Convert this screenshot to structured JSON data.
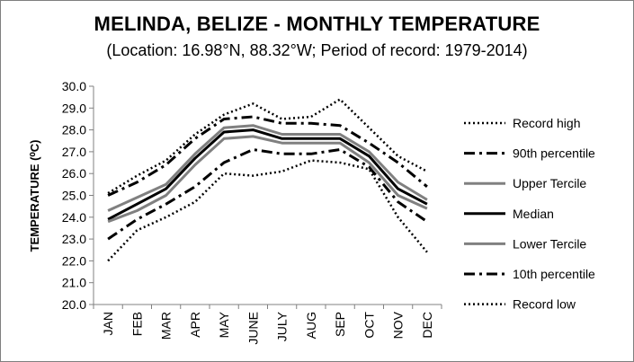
{
  "chart_data": {
    "type": "line",
    "title": "MELINDA, BELIZE - MONTHLY TEMPERATURE",
    "subtitle": "(Location: 16.98°N, 88.32°W; Period of record: 1979-2014)",
    "ylabel": "TEMPERATURE (⁰C)",
    "xlabel": "",
    "ylim": [
      20.0,
      30.0
    ],
    "ytick_labels": [
      "20.0",
      "21.0",
      "22.0",
      "23.0",
      "24.0",
      "25.0",
      "26.0",
      "27.0",
      "28.0",
      "29.0",
      "30.0"
    ],
    "categories": [
      "JAN",
      "FEB",
      "MAR",
      "APR",
      "MAY",
      "JUNE",
      "JULY",
      "AUG",
      "SEP",
      "OCT",
      "NOV",
      "DEC"
    ],
    "grid": false,
    "legend_position": "right",
    "series": [
      {
        "name": "Record high",
        "color": "#000000",
        "style": "dotted",
        "width": 2.5,
        "values": [
          25.1,
          25.9,
          26.6,
          27.8,
          28.7,
          29.2,
          28.5,
          28.6,
          29.4,
          28.1,
          26.8,
          26.1
        ]
      },
      {
        "name": "90th percentile",
        "color": "#000000",
        "style": "dashdot",
        "width": 3,
        "values": [
          25.0,
          25.6,
          26.4,
          27.6,
          28.5,
          28.6,
          28.3,
          28.3,
          28.2,
          27.4,
          26.5,
          25.4
        ]
      },
      {
        "name": "Upper Tercile",
        "color": "#808080",
        "style": "solid",
        "width": 3,
        "values": [
          24.3,
          24.9,
          25.5,
          26.9,
          28.1,
          28.2,
          27.8,
          27.8,
          27.8,
          27.0,
          25.6,
          24.8
        ]
      },
      {
        "name": "Median",
        "color": "#000000",
        "style": "solid",
        "width": 3,
        "values": [
          23.9,
          24.6,
          25.3,
          26.7,
          27.9,
          28.0,
          27.6,
          27.6,
          27.6,
          26.8,
          25.3,
          24.6
        ]
      },
      {
        "name": "Lower Tercile",
        "color": "#808080",
        "style": "solid",
        "width": 3,
        "values": [
          23.8,
          24.3,
          25.0,
          26.4,
          27.6,
          27.7,
          27.4,
          27.4,
          27.4,
          26.5,
          25.0,
          24.4
        ]
      },
      {
        "name": "10th percentile",
        "color": "#000000",
        "style": "dashdot",
        "width": 3,
        "values": [
          23.0,
          23.9,
          24.6,
          25.4,
          26.5,
          27.1,
          26.9,
          26.9,
          27.1,
          26.3,
          24.7,
          23.8
        ]
      },
      {
        "name": "Record low",
        "color": "#000000",
        "style": "dotted",
        "width": 2.5,
        "values": [
          22.0,
          23.4,
          24.0,
          24.7,
          26.0,
          25.9,
          26.1,
          26.6,
          26.5,
          26.2,
          24.0,
          22.4
        ]
      }
    ]
  }
}
